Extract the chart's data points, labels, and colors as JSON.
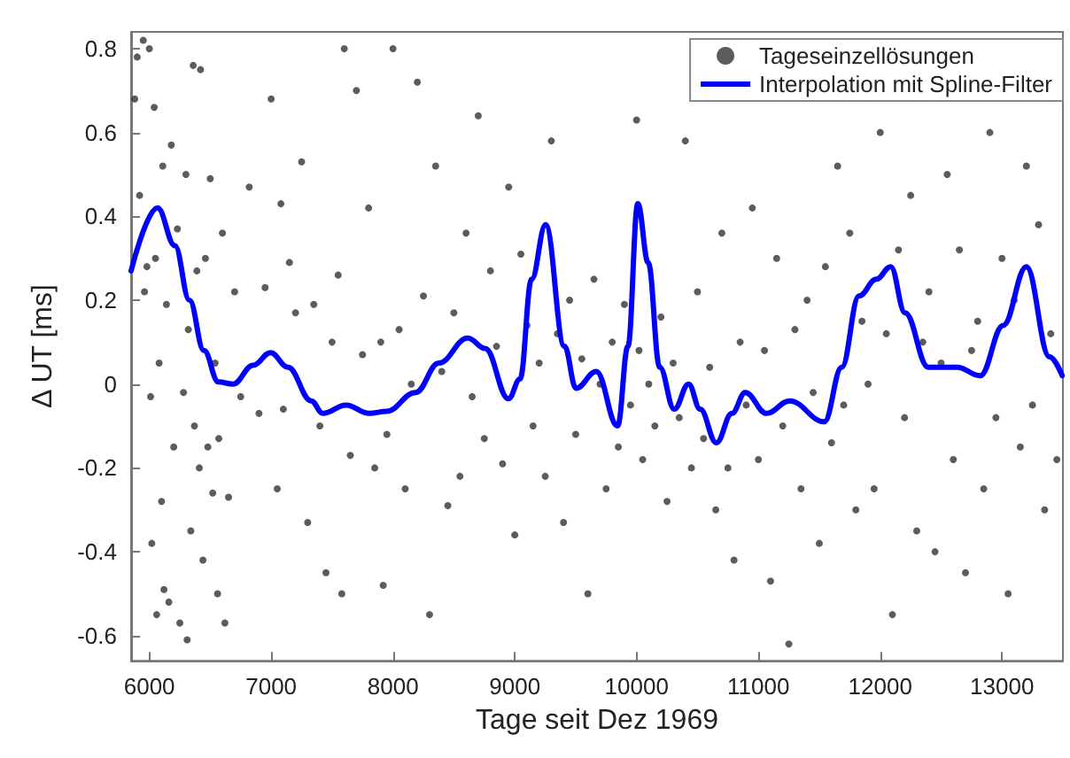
{
  "chart_data": {
    "type": "scatter",
    "xlabel": "Tage seit Dez 1969",
    "ylabel": "Δ UT [ms]",
    "xlim": [
      5850,
      13500
    ],
    "xticks": [
      6000,
      7000,
      8000,
      9000,
      10000,
      11000,
      12000,
      13000
    ],
    "ylim": [
      -0.66,
      0.84
    ],
    "yticks": [
      -0.6,
      -0.4,
      -0.2,
      0,
      0.2,
      0.4,
      0.6,
      0.8
    ],
    "grid": false,
    "legend": "top right",
    "series": [
      {
        "name": "Tageseinzellösungen",
        "marker": "circle",
        "color": "#333333",
        "x": [
          5880,
          5900,
          5920,
          5950,
          5960,
          5980,
          6000,
          6010,
          6020,
          6040,
          6050,
          6060,
          6080,
          6100,
          6110,
          6120,
          6140,
          6160,
          6180,
          6200,
          6230,
          6250,
          6280,
          6300,
          6310,
          6320,
          6340,
          6360,
          6370,
          6390,
          6410,
          6420,
          6440,
          6460,
          6480,
          6500,
          6520,
          6540,
          6560,
          6570,
          6600,
          6620,
          6650,
          6700,
          6750,
          6820,
          6900,
          6950,
          7000,
          7050,
          7080,
          7100,
          7150,
          7200,
          7250,
          7300,
          7350,
          7400,
          7450,
          7500,
          7550,
          7580,
          7600,
          7650,
          7700,
          7750,
          7800,
          7850,
          7900,
          7920,
          7950,
          8000,
          8050,
          8100,
          8150,
          8200,
          8250,
          8300,
          8350,
          8400,
          8450,
          8500,
          8550,
          8600,
          8650,
          8700,
          8750,
          8800,
          8850,
          8900,
          8950,
          9000,
          9050,
          9100,
          9150,
          9200,
          9250,
          9300,
          9350,
          9400,
          9450,
          9500,
          9550,
          9600,
          9650,
          9700,
          9750,
          9800,
          9850,
          9900,
          9950,
          10000,
          10020,
          10050,
          10100,
          10150,
          10200,
          10250,
          10300,
          10350,
          10400,
          10450,
          10500,
          10550,
          10600,
          10650,
          10700,
          10750,
          10800,
          10850,
          10900,
          10950,
          11000,
          11050,
          11100,
          11150,
          11200,
          11250,
          11300,
          11350,
          11400,
          11450,
          11500,
          11550,
          11600,
          11650,
          11700,
          11750,
          11800,
          11850,
          11900,
          11950,
          12000,
          12050,
          12100,
          12150,
          12200,
          12250,
          12300,
          12350,
          12400,
          12450,
          12500,
          12550,
          12600,
          12650,
          12700,
          12750,
          12800,
          12850,
          12900,
          12950,
          13000,
          13050,
          13100,
          13150,
          13200,
          13250,
          13300,
          13350,
          13400,
          13450
        ],
        "values": [
          0.68,
          0.78,
          0.45,
          0.82,
          0.22,
          0.28,
          0.8,
          -0.03,
          -0.38,
          0.66,
          0.3,
          -0.55,
          0.05,
          -0.28,
          0.52,
          -0.49,
          0.19,
          -0.52,
          0.57,
          -0.15,
          0.37,
          -0.57,
          -0.02,
          0.5,
          -0.61,
          0.13,
          -0.35,
          0.76,
          -0.1,
          0.27,
          -0.2,
          0.75,
          -0.42,
          0.3,
          -0.15,
          0.49,
          -0.26,
          0.05,
          -0.5,
          -0.13,
          0.36,
          -0.57,
          -0.27,
          0.22,
          -0.03,
          0.47,
          -0.07,
          0.23,
          0.68,
          -0.25,
          0.43,
          -0.06,
          0.29,
          0.17,
          0.53,
          -0.33,
          0.19,
          -0.1,
          -0.45,
          0.1,
          0.26,
          -0.5,
          0.8,
          -0.17,
          0.7,
          0.07,
          0.42,
          -0.2,
          0.1,
          -0.48,
          -0.12,
          0.8,
          0.13,
          -0.25,
          0.0,
          0.72,
          0.21,
          -0.55,
          0.52,
          0.03,
          -0.29,
          0.17,
          -0.22,
          0.36,
          -0.03,
          0.64,
          -0.13,
          0.27,
          0.09,
          -0.19,
          0.47,
          -0.36,
          0.31,
          0.14,
          -0.1,
          0.05,
          -0.22,
          0.58,
          0.12,
          -0.33,
          0.2,
          -0.12,
          0.06,
          -0.5,
          0.25,
          0.0,
          -0.25,
          0.1,
          -0.15,
          0.19,
          -0.05,
          0.63,
          0.08,
          -0.18,
          0.0,
          -0.1,
          0.16,
          -0.28,
          0.05,
          -0.08,
          0.58,
          -0.2,
          0.22,
          -0.13,
          0.04,
          -0.3,
          0.36,
          -0.2,
          -0.42,
          0.1,
          -0.05,
          0.42,
          -0.18,
          0.08,
          -0.47,
          0.3,
          -0.1,
          -0.62,
          0.13,
          -0.25,
          0.2,
          -0.02,
          -0.38,
          0.28,
          -0.14,
          0.52,
          -0.05,
          0.36,
          -0.3,
          0.15,
          0.0,
          -0.25,
          0.6,
          0.12,
          -0.55,
          0.32,
          -0.08,
          0.45,
          -0.35,
          0.1,
          0.22,
          -0.4,
          0.05,
          0.5,
          -0.18,
          0.32,
          -0.45,
          0.08,
          0.15,
          -0.25,
          0.6,
          -0.08,
          0.3,
          -0.5,
          0.2,
          -0.15,
          0.52,
          -0.05,
          0.38,
          -0.3,
          0.12,
          -0.18
        ]
      },
      {
        "name": "Interpolation mit Spline-Filter",
        "type": "line",
        "marker": "none",
        "color": "#0000ff",
        "x": [
          5850,
          6067,
          6210,
          6329,
          6448,
          6567,
          6686,
          6852,
          6995,
          7138,
          7329,
          7424,
          7614,
          7805,
          7948,
          8186,
          8376,
          8614,
          8757,
          8948,
          9043,
          9138,
          9253,
          9408,
          9503,
          9669,
          9844,
          9929,
          10010,
          10095,
          10190,
          10309,
          10427,
          10522,
          10655,
          10783,
          10892,
          11067,
          11257,
          11541,
          11684,
          11826,
          11968,
          12086,
          12204,
          12395,
          12631,
          12821,
          13010,
          13200,
          13390,
          13494
        ],
        "values": [
          0.27,
          0.42,
          0.33,
          0.2,
          0.08,
          0.005,
          0.0,
          0.045,
          0.075,
          0.04,
          -0.04,
          -0.07,
          -0.05,
          -0.07,
          -0.065,
          -0.02,
          0.05,
          0.11,
          0.085,
          -0.035,
          0.012,
          0.25,
          0.38,
          0.09,
          -0.01,
          0.03,
          -0.1,
          0.09,
          0.43,
          0.29,
          0.04,
          -0.06,
          0.0,
          -0.06,
          -0.14,
          -0.07,
          -0.02,
          -0.07,
          -0.04,
          -0.09,
          0.04,
          0.21,
          0.25,
          0.28,
          0.17,
          0.04,
          0.04,
          0.02,
          0.14,
          0.28,
          0.065,
          0.02
        ]
      }
    ]
  }
}
